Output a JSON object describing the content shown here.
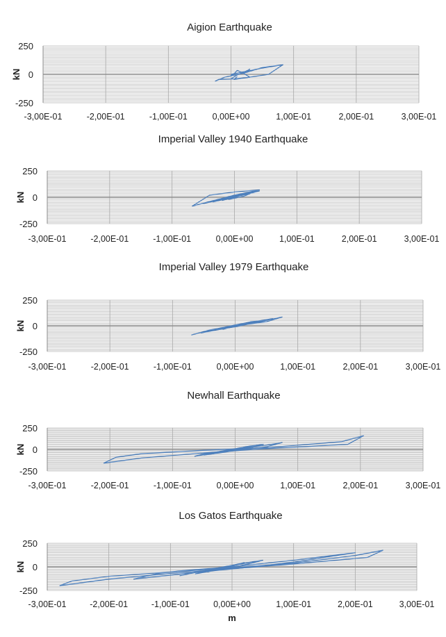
{
  "x_axis_label": "m",
  "series_color": "#4f81bd",
  "chart_data": [
    {
      "type": "scatter",
      "title": "Aigion Earthquake",
      "ylabel": "kN",
      "xlim": [
        -0.3,
        0.3
      ],
      "ylim": [
        -250,
        250
      ],
      "x_ticks": [
        -0.3,
        -0.2,
        -0.1,
        0.0,
        0.1,
        0.2,
        0.3
      ],
      "x_tick_labels": [
        "-3,00E-01",
        "-2,00E-01",
        "-1,00E-01",
        "0,00E+00",
        "1,00E-01",
        "2,00E-01",
        "3,00E-01"
      ],
      "y_ticks": [
        -250,
        0,
        250
      ],
      "y_tick_labels": [
        "-250",
        "0",
        "250"
      ],
      "grid": true,
      "series": [
        {
          "x": [
            0.0,
            0.05,
            0.083,
            0.06,
            0.03,
            0.005,
            -0.02,
            -0.025,
            -0.01,
            0.02,
            0.05,
            0.083
          ],
          "y": [
            0,
            55,
            85,
            0,
            -25,
            -40,
            -45,
            -60,
            -25,
            10,
            60,
            85
          ]
        },
        {
          "x": [
            0.0,
            0.01,
            0.025,
            0.03,
            0.02,
            0.0,
            0.005,
            0.01,
            0.02,
            0.03,
            0.005,
            0.01
          ],
          "y": [
            -40,
            -5,
            30,
            45,
            10,
            -10,
            5,
            35,
            10,
            -25,
            -45,
            -20
          ]
        }
      ]
    },
    {
      "type": "scatter",
      "title": "Imperial Valley 1940 Earthquake",
      "ylabel": "kN",
      "xlim": [
        -0.3,
        0.3
      ],
      "ylim": [
        -250,
        250
      ],
      "x_ticks": [
        -0.3,
        -0.2,
        -0.1,
        0.0,
        0.1,
        0.2,
        0.3
      ],
      "x_tick_labels": [
        "-3,00E-01",
        "-2,00E-01",
        "-1,00E-01",
        "0,00E+00",
        "1,00E-01",
        "2,00E-01",
        "3,00E-01"
      ],
      "y_ticks": [
        -250,
        0,
        250
      ],
      "y_tick_labels": [
        "-250",
        "0",
        "250"
      ],
      "grid": true,
      "series": [
        {
          "x": [
            -0.068,
            -0.04,
            0.0,
            0.04,
            0.0,
            -0.04,
            -0.068
          ],
          "y": [
            -85,
            -40,
            20,
            70,
            50,
            20,
            -85
          ]
        },
        {
          "x": [
            -0.05,
            -0.02,
            0.02,
            0.035,
            0.0,
            -0.03,
            -0.05
          ],
          "y": [
            -60,
            -20,
            40,
            55,
            20,
            -30,
            -60
          ]
        },
        {
          "x": [
            -0.035,
            -0.01,
            0.03,
            0.04,
            0.005,
            -0.02,
            -0.035
          ],
          "y": [
            -45,
            -5,
            45,
            60,
            15,
            -25,
            -45
          ]
        },
        {
          "x": [
            -0.02,
            0.0,
            0.02,
            0.03,
            0.0,
            -0.015,
            -0.02
          ],
          "y": [
            -30,
            0,
            35,
            45,
            5,
            -20,
            -30
          ]
        },
        {
          "x": [
            -0.01,
            0.005,
            0.025,
            0.015,
            -0.005,
            -0.01
          ],
          "y": [
            -20,
            10,
            35,
            10,
            -15,
            -20
          ]
        }
      ]
    },
    {
      "type": "scatter",
      "title": "Imperial Valley 1979 Earthquake",
      "ylabel": "kN",
      "xlim": [
        -0.3,
        0.3
      ],
      "ylim": [
        -250,
        250
      ],
      "x_ticks": [
        -0.3,
        -0.2,
        -0.1,
        0.0,
        0.1,
        0.2,
        0.3
      ],
      "x_tick_labels": [
        "-3,00E-01",
        "-2,00E-01",
        "-1,00E-01",
        "0,00E+00",
        "1,00E-01",
        "2,00E-01",
        "3,00E-01"
      ],
      "y_ticks": [
        -250,
        0,
        250
      ],
      "y_tick_labels": [
        "-250",
        "0",
        "250"
      ],
      "grid": true,
      "series": [
        {
          "x": [
            -0.07,
            -0.045,
            0.0,
            0.04,
            0.075,
            0.05,
            0.0,
            -0.04,
            -0.07
          ],
          "y": [
            -90,
            -50,
            -10,
            40,
            85,
            40,
            0,
            -40,
            -90
          ]
        },
        {
          "x": [
            -0.055,
            -0.03,
            0.01,
            0.05,
            0.06,
            0.02,
            -0.02,
            -0.055
          ],
          "y": [
            -70,
            -30,
            20,
            60,
            70,
            20,
            -30,
            -70
          ]
        },
        {
          "x": [
            -0.04,
            -0.01,
            0.03,
            0.045,
            0.01,
            -0.025,
            -0.04
          ],
          "y": [
            -50,
            -10,
            35,
            50,
            5,
            -35,
            -50
          ]
        },
        {
          "x": [
            -0.02,
            0.0,
            0.025,
            0.035,
            0.005,
            -0.015,
            -0.02
          ],
          "y": [
            -35,
            0,
            40,
            45,
            5,
            -25,
            -35
          ]
        }
      ]
    },
    {
      "type": "scatter",
      "title": "Newhall Earthquake",
      "ylabel": "kN",
      "xlim": [
        -0.3,
        0.3
      ],
      "ylim": [
        -250,
        250
      ],
      "x_ticks": [
        -0.3,
        -0.2,
        -0.1,
        0.0,
        0.1,
        0.2,
        0.3
      ],
      "x_tick_labels": [
        "-3,00E-01",
        "-2,00E-01",
        "-1,00E-01",
        "0,00E+00",
        "1,00E-01",
        "2,00E-01",
        "3,00E-01"
      ],
      "y_ticks": [
        -250,
        0,
        250
      ],
      "y_tick_labels": [
        "-250",
        "0",
        "250"
      ],
      "grid": true,
      "series": [
        {
          "x": [
            -0.21,
            -0.19,
            -0.15,
            -0.05,
            0.05,
            0.17,
            0.205,
            0.18,
            0.05,
            -0.05,
            -0.15,
            -0.21
          ],
          "y": [
            -160,
            -90,
            -50,
            -10,
            20,
            90,
            160,
            60,
            10,
            -40,
            -100,
            -160
          ]
        },
        {
          "x": [
            -0.065,
            -0.05,
            0.0,
            0.05,
            0.075,
            0.05,
            0.0,
            -0.04,
            -0.065
          ],
          "y": [
            -80,
            -50,
            0,
            50,
            80,
            30,
            -10,
            -50,
            -80
          ]
        },
        {
          "x": [
            -0.05,
            -0.03,
            0.01,
            0.04,
            0.045,
            0.02,
            -0.02,
            -0.05
          ],
          "y": [
            -65,
            -30,
            20,
            55,
            60,
            10,
            -35,
            -65
          ]
        },
        {
          "x": [
            -0.035,
            -0.015,
            0.02,
            0.035,
            0.005,
            -0.02,
            -0.035
          ],
          "y": [
            -50,
            -15,
            35,
            50,
            5,
            -30,
            -50
          ]
        },
        {
          "x": [
            -0.02,
            0.0,
            0.02,
            0.025,
            0.0,
            -0.015,
            -0.02
          ],
          "y": [
            -35,
            0,
            30,
            40,
            5,
            -25,
            -35
          ]
        }
      ]
    },
    {
      "type": "scatter",
      "title": "Los Gatos Earthquake",
      "ylabel": "kN",
      "xlabel": "m",
      "xlim": [
        -0.3,
        0.3
      ],
      "ylim": [
        -250,
        250
      ],
      "x_ticks": [
        -0.3,
        -0.2,
        -0.1,
        0.0,
        0.1,
        0.2,
        0.3
      ],
      "x_tick_labels": [
        "-3,00E-01",
        "-2,00E-01",
        "-1,00E-01",
        "0,00E+00",
        "1,00E-01",
        "2,00E-01",
        "3,00E-01"
      ],
      "y_ticks": [
        -250,
        0,
        250
      ],
      "y_tick_labels": [
        "-250",
        "0",
        "250"
      ],
      "grid": true,
      "series": [
        {
          "x": [
            -0.28,
            -0.26,
            -0.2,
            -0.1,
            0.0,
            0.1,
            0.2,
            0.245,
            0.22,
            0.1,
            0.0,
            -0.1,
            -0.2,
            -0.28
          ],
          "y": [
            -200,
            -150,
            -100,
            -55,
            -10,
            40,
            120,
            175,
            100,
            30,
            -20,
            -70,
            -130,
            -200
          ]
        },
        {
          "x": [
            -0.16,
            -0.12,
            -0.08,
            0.0,
            0.1,
            0.2,
            0.16,
            0.1,
            0.02,
            -0.06,
            -0.16
          ],
          "y": [
            -130,
            -70,
            -40,
            0,
            70,
            150,
            110,
            50,
            -10,
            -60,
            -130
          ]
        },
        {
          "x": [
            -0.085,
            -0.06,
            -0.03,
            0.02,
            0.05,
            0.02,
            -0.02,
            -0.06,
            -0.085
          ],
          "y": [
            -95,
            -60,
            -20,
            40,
            70,
            20,
            -30,
            -60,
            -95
          ]
        },
        {
          "x": [
            -0.06,
            -0.035,
            0.0,
            0.035,
            0.045,
            0.01,
            -0.03,
            -0.06
          ],
          "y": [
            -75,
            -35,
            10,
            55,
            60,
            5,
            -40,
            -75
          ]
        },
        {
          "x": [
            -0.04,
            -0.02,
            0.01,
            0.02,
            0.0,
            -0.025,
            -0.04
          ],
          "y": [
            -55,
            -15,
            30,
            45,
            5,
            -30,
            -55
          ]
        }
      ]
    }
  ]
}
